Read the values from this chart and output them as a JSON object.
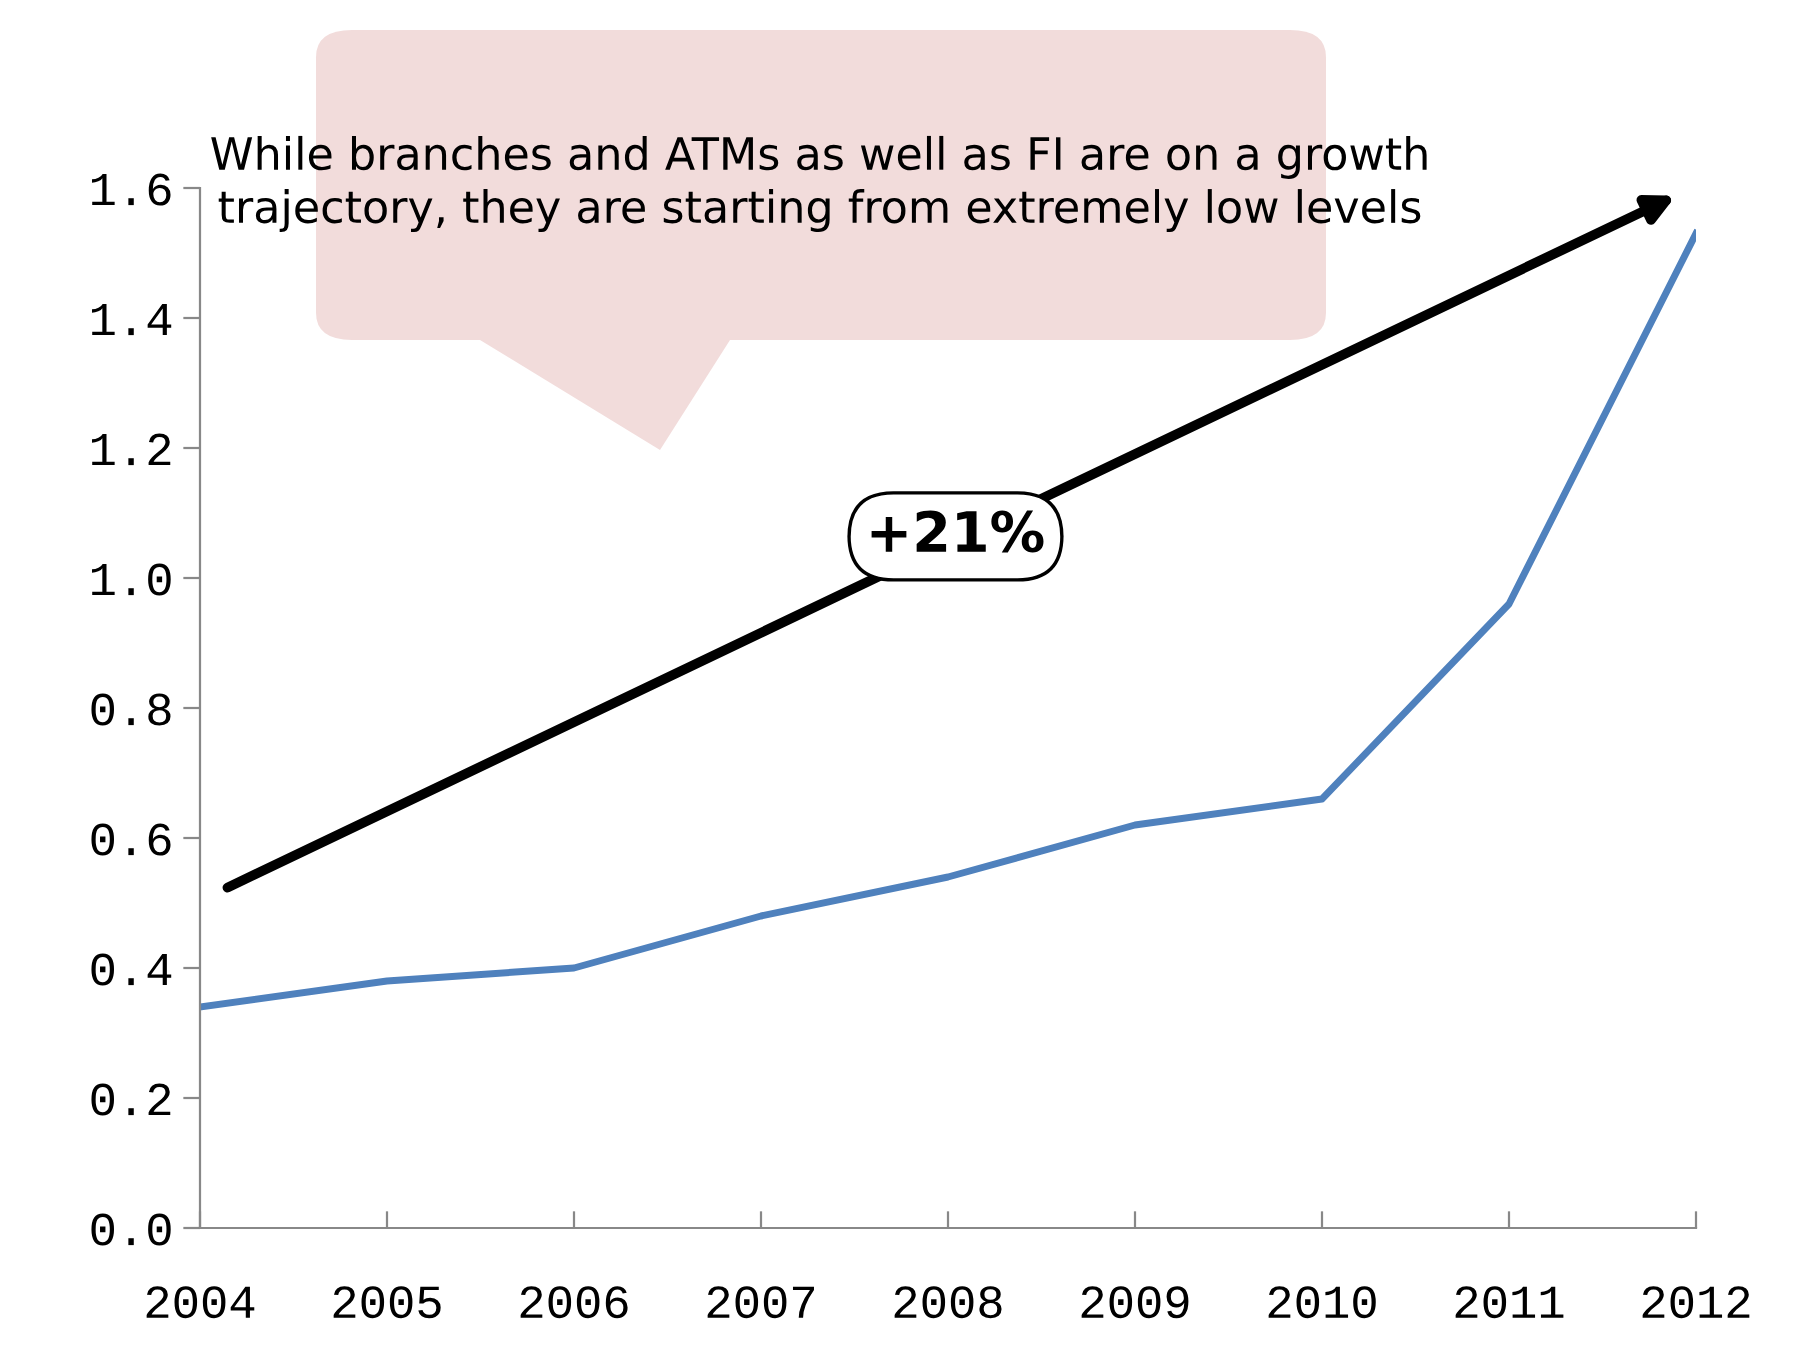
{
  "chart_data": {
    "type": "line",
    "x": [
      2004,
      2005,
      2006,
      2007,
      2008,
      2009,
      2010,
      2011,
      2012
    ],
    "series": [
      {
        "color": "#4f81bd",
        "values": [
          0.34,
          0.38,
          0.4,
          0.48,
          0.54,
          0.62,
          0.66,
          0.96,
          1.53
        ]
      }
    ],
    "xlim": [
      2004,
      2012
    ],
    "xticks": [
      2004,
      2005,
      2006,
      2007,
      2008,
      2009,
      2010,
      2011,
      2012
    ],
    "ylim": [
      0,
      1.6
    ],
    "yticks": [
      {
        "value": 0,
        "label": "0.0"
      },
      0.2,
      0.4,
      0.6,
      0.8,
      {
        "value": 1,
        "label": "1.0"
      },
      1.2,
      1.4,
      1.6
    ],
    "annotations": [
      "While branches and ATMs as well as FI are on a growth trajectory, they are starting from extremely low levels",
      "+21%"
    ],
    "grid": false,
    "legend": false,
    "marker": "none",
    "line_style": "solid"
  }
}
